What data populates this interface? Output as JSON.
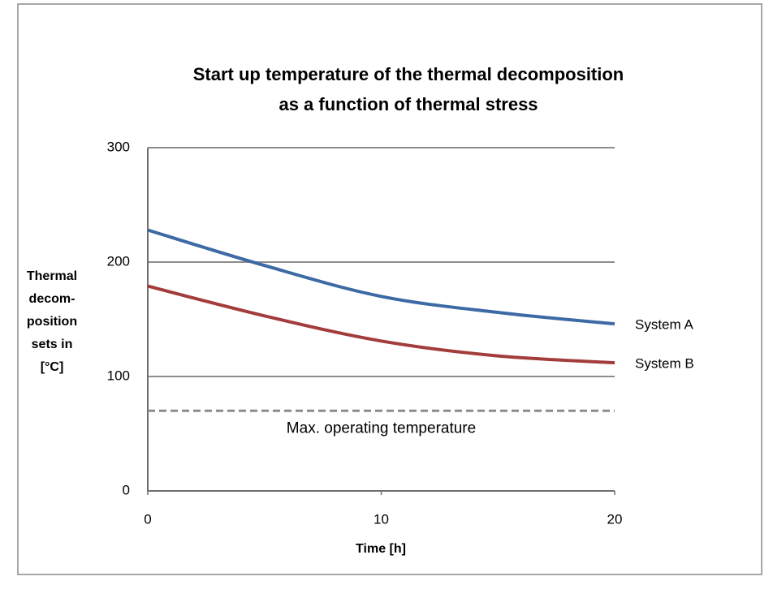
{
  "chart_data": {
    "type": "line",
    "title": [
      "Start up temperature of the thermal decomposition",
      "as a function of thermal stress"
    ],
    "x_label": "Time [h]",
    "y_label": [
      "Thermal",
      "decom-",
      "position",
      "sets in",
      "[°C]"
    ],
    "x": [
      0,
      5,
      10,
      15,
      20
    ],
    "series": [
      {
        "name": "System A",
        "color": "#3d6aa4",
        "values": [
          228,
          197,
          170,
          156,
          146
        ]
      },
      {
        "name": "System B",
        "color": "#a33d3b",
        "values": [
          179,
          153,
          131,
          118,
          112
        ]
      }
    ],
    "reference_lines": [
      {
        "value": 70,
        "label": "Max. operating temperature",
        "color": "#8c8c8c"
      }
    ],
    "xlim": [
      0,
      20
    ],
    "xticks": [
      0,
      10,
      20
    ],
    "ylim": [
      0,
      300
    ],
    "yticks": [
      0,
      100,
      200,
      300
    ],
    "grid": true
  }
}
